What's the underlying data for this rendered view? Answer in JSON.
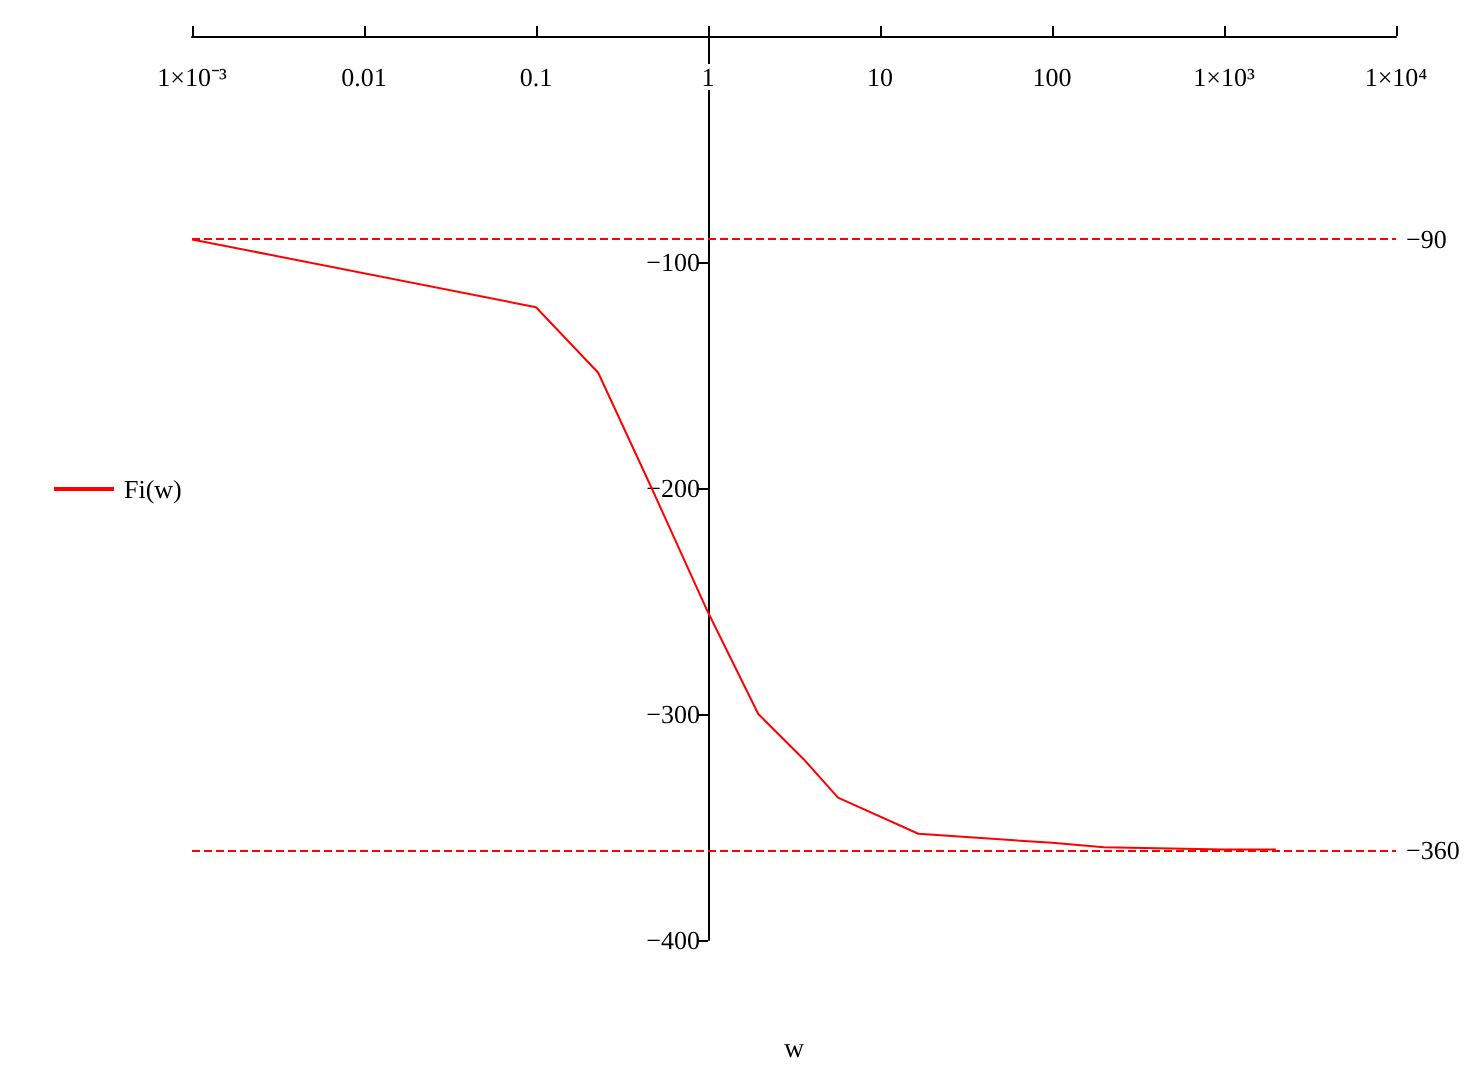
{
  "chart_data": {
    "type": "line",
    "xlabel": "w",
    "log": "x",
    "x": [
      0.001,
      0.1,
      0.23,
      0.47,
      1,
      1.96,
      3.6,
      5.7,
      16.7,
      100,
      200,
      1000,
      2000
    ],
    "series": [
      {
        "name": "Fi(w)",
        "color": "#ff0000",
        "values": [
          -90,
          -120,
          -149,
          -200,
          -255,
          -300,
          -320,
          -337,
          -353,
          -357,
          -359,
          -360,
          -360
        ]
      }
    ],
    "xlim": [
      0.001,
      10000
    ],
    "xticks": [
      {
        "value": 0.001,
        "label": "1×10⁻³"
      },
      0.01,
      0.1,
      1,
      10,
      100,
      {
        "value": 1000,
        "label": "1×10³"
      },
      {
        "value": 10000,
        "label": "1×10⁴"
      }
    ],
    "ylim": [
      -400,
      0
    ],
    "yticks": [
      {
        "value": -100,
        "label": "−100"
      },
      {
        "value": -200,
        "label": "−200"
      },
      {
        "value": -300,
        "label": "−300"
      },
      {
        "value": -400,
        "label": "−400"
      }
    ],
    "ref_lines": [
      {
        "axis": "y",
        "value": -90,
        "label": "−90",
        "color": "#ff0000",
        "line_style": "dashed"
      },
      {
        "axis": "y",
        "value": -360,
        "label": "−360",
        "color": "#ff0000",
        "line_style": "dashed"
      }
    ],
    "legend": "left",
    "grid": false,
    "marker": "none",
    "line_style": "solid"
  }
}
